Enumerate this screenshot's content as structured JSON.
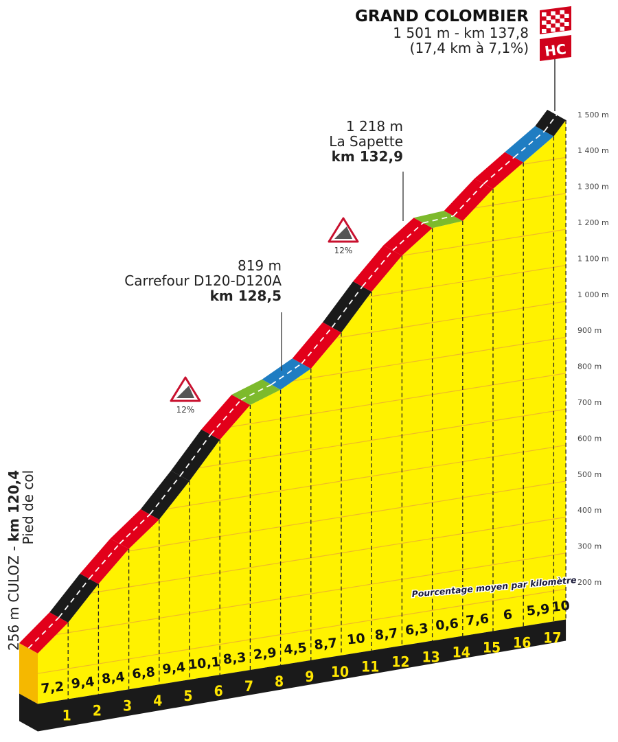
{
  "summit": {
    "name": "GRAND COLOMBIER",
    "detail": "1 501 m - km 137,8",
    "climb": "(17,4 km à 7,1%)",
    "category": "HC"
  },
  "start": {
    "line1_plain": "256 m CULOZ - ",
    "line1_bold": "km 120,4",
    "line2": "Pied de col"
  },
  "waypoints": [
    {
      "altitude": "819 m",
      "name": "Carrefour D120-D120A",
      "km": "km 128,5"
    },
    {
      "altitude": "1 218 m",
      "name": "La Sapette",
      "km": "km 132,9"
    }
  ],
  "warnings": [
    {
      "icon": "steep-gradient-sign",
      "label": "12%"
    },
    {
      "icon": "steep-gradient-sign",
      "label": "12%"
    }
  ],
  "legend_note": "Pourcentage moyen par kilomètre",
  "colors": {
    "0-3": "#7dba2c",
    "3-6": "#1f7dc2",
    "6-9": "#e2001a",
    "9+": "#1a1a1a",
    "fill": "#fff200",
    "side": "#f5b800",
    "base": "#1a1a1a"
  },
  "chart_data": {
    "type": "area",
    "start_altitude_m": 256,
    "segment_lengths_km": [
      1,
      1,
      1,
      1,
      1,
      1,
      1,
      1,
      1,
      1,
      1,
      1,
      1,
      1,
      1,
      1,
      1,
      0.4
    ],
    "gradients_pct": [
      7.2,
      9.4,
      8.4,
      6.8,
      9.4,
      10.1,
      8.3,
      2.9,
      4.5,
      8.7,
      10,
      8.7,
      6.3,
      0.6,
      7.6,
      6,
      5.9,
      10
    ],
    "gradient_labels": [
      "7,2",
      "9,4",
      "8,4",
      "6,8",
      "9,4",
      "10,1",
      "8,3",
      "2,9",
      "4,5",
      "8,7",
      "10",
      "8,7",
      "6,3",
      "0,6",
      "7,6",
      "6",
      "5,9",
      "10"
    ],
    "km_labels": [
      "1",
      "2",
      "3",
      "4",
      "5",
      "6",
      "7",
      "8",
      "9",
      "10",
      "11",
      "12",
      "13",
      "14",
      "15",
      "16",
      "17"
    ],
    "y_ticks": [
      200,
      300,
      400,
      500,
      600,
      700,
      800,
      900,
      1000,
      1100,
      1200,
      1300,
      1400,
      1500
    ],
    "y_tick_labels": [
      "200 m",
      "300 m",
      "400 m",
      "500 m",
      "600 m",
      "700 m",
      "800 m",
      "900 m",
      "1 000 m",
      "1 100 m",
      "1 200 m",
      "1 300 m",
      "1 400 m",
      "1 500 m"
    ],
    "ylim": [
      200,
      1500
    ],
    "xlim_km": [
      0,
      17.4
    ]
  }
}
